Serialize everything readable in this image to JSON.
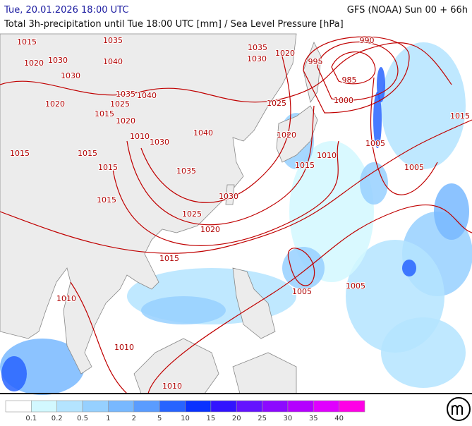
{
  "header": {
    "date": "Tue, 20.01.2026 18:00 UTC",
    "model": "GFS (NOAA) Sun 00 + 66h",
    "subtitle": "Total 3h-precipitation until Tue 18:00 UTC [mm] / Sea Level Pressure [hPa]"
  },
  "isobar_labels": [
    "1015",
    "1035",
    "1035",
    "1020",
    "990",
    "1020",
    "1030",
    "1040",
    "1030",
    "995",
    "1030",
    "985",
    "1035",
    "1040",
    "1000",
    "1020",
    "1025",
    "1025",
    "1015",
    "1020",
    "1015",
    "1040",
    "1010",
    "1020",
    "1030",
    "1005",
    "1015",
    "1015",
    "1010",
    "1015",
    "1015",
    "1005",
    "1035",
    "1030",
    "1015",
    "1025",
    "1020",
    "1015",
    "1005",
    "1005",
    "1010",
    "1010",
    "1010"
  ],
  "legend": {
    "colors": [
      "#ffffff",
      "#d2f8ff",
      "#b4e4ff",
      "#96d0ff",
      "#78b8ff",
      "#5a9cff",
      "#2864ff",
      "#0a32ff",
      "#3214ff",
      "#6414ff",
      "#8c0aff",
      "#b400ff",
      "#e000ff",
      "#ff00e6"
    ],
    "ticks": [
      "0.1",
      "0.2",
      "0.5",
      "1",
      "2",
      "5",
      "10",
      "15",
      "20",
      "25",
      "30",
      "35",
      "40"
    ]
  }
}
